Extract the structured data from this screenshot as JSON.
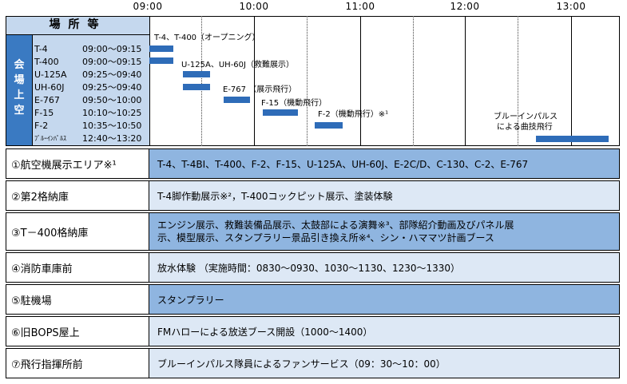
{
  "timeline": {
    "times": [
      "09:00",
      "10:00",
      "11:00",
      "12:00",
      "13:00"
    ],
    "header": "場所等",
    "venue_label": [
      "会",
      "場",
      "上",
      "空"
    ],
    "aircraft": [
      {
        "name": "T-4",
        "time": "09:00～09:15"
      },
      {
        "name": "T-400",
        "time": "09:00～09:15"
      },
      {
        "name": "U-125A",
        "time": "09:25～09:40"
      },
      {
        "name": "UH-60J",
        "time": "09:25～09:40"
      },
      {
        "name": "E-767",
        "time": "09:50～10:00"
      },
      {
        "name": "F-15",
        "time": "10:10～10:25"
      },
      {
        "name": "F-2",
        "time": "10:35～10:50"
      },
      {
        "name": "ﾌﾞﾙｰｲﾝﾊﾟﾙｽ",
        "time": "12:40～13:20"
      }
    ],
    "annotations": {
      "opening": "T-4、T-400（オープニング）",
      "rescue": "U-125A、UH-60J（救難展示）",
      "e767": "E-767 （展示飛行）",
      "f15": "F-15（機動飛行）",
      "f2": "F-2（機動飛行）※¹",
      "blue1": "ブルーインパルス",
      "blue2": "による曲技飛行"
    },
    "bar_color": "#2e6cb8"
  },
  "rows": [
    {
      "place": "①航空機展示エリア※¹",
      "content": "T-4、T-4BI、T-400、F-2、F-15、U-125A、UH-60J、E-2C/D、C-130、C-2、E-767"
    },
    {
      "place": "②第2格納庫",
      "content": "T-4脚作動展示※²，T-400コックピット展示、塗装体験"
    },
    {
      "place": "③T－400格納庫",
      "content_line1": "エンジン展示、救難装備品展示、太鼓部による演舞※³、部隊紹介動画及びパネル展",
      "content_line2": "示、模型展示、スタンプラリー景品引き換え所※⁴、シン・ハママツ計画ブース"
    },
    {
      "place": "④消防車庫前",
      "content": "放水体験 （実施時間：0830～0930、1030～1130、1230～1330）"
    },
    {
      "place": "⑤駐機場",
      "content": "スタンプラリー"
    },
    {
      "place": "⑥旧BOPS屋上",
      "content": "FMハローによる放送ブース開設（1000～1400）"
    },
    {
      "place": "⑦飛行指揮所前",
      "content": "ブルーインパルス隊員によるファンサービス（09：30～10：00）"
    }
  ],
  "colors": {
    "header_bg": "#c5d8ee",
    "venue_bg": "#3a7ac2",
    "row_blue": "#8fb5e0",
    "row_light": "#dde8f5"
  }
}
